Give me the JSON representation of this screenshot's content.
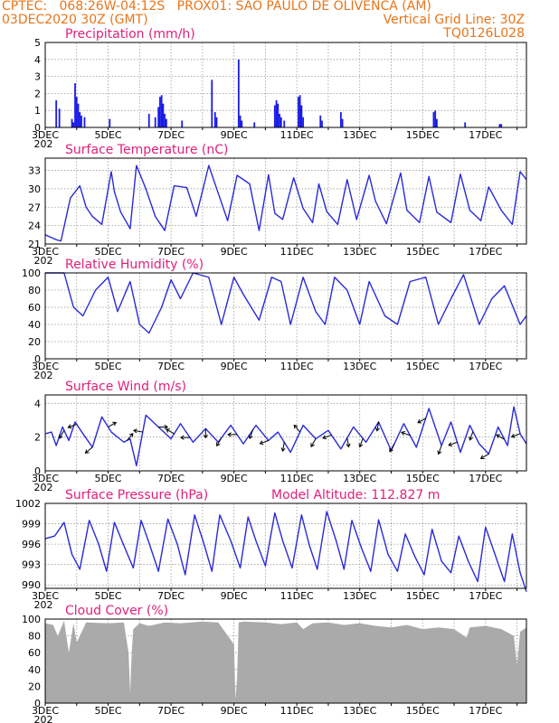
{
  "header": {
    "left_line1": "CPTEC:   068:26W-04:12S   PROX01: SAO PAULO DE OLIVENCA (AM)",
    "left_line2": "03DEC2020 30Z (GMT)",
    "right_line2": "Vertical Grid Line: 30Z",
    "right_line3": "TQ0126L028"
  },
  "colors": {
    "header": "#e8751a",
    "title": "#e0207a",
    "series": "#2a2ad8",
    "precip": "#1a1ae6",
    "cloud": "#aaaaaa",
    "arrow": "#000000"
  },
  "x_axis": {
    "labels": [
      "3DEC",
      "5DEC",
      "7DEC",
      "9DEC",
      "11DEC",
      "13DEC",
      "15DEC",
      "17DEC"
    ],
    "year_stub": "202"
  },
  "chart_data": [
    {
      "type": "bar",
      "title": "Precipitation (mm/h)",
      "ylim": [
        0,
        5
      ],
      "yticks": [
        "0",
        "1",
        "2",
        "3",
        "4",
        "5"
      ],
      "x_range_days": [
        0,
        15.3
      ],
      "spikes": [
        [
          0.35,
          1.6
        ],
        [
          0.45,
          1.1
        ],
        [
          0.85,
          0.5
        ],
        [
          0.9,
          0.3
        ],
        [
          0.95,
          2.6
        ],
        [
          1.0,
          1.8
        ],
        [
          1.05,
          1.4
        ],
        [
          1.1,
          0.9
        ],
        [
          1.15,
          0.7
        ],
        [
          1.25,
          0.6
        ],
        [
          2.05,
          0.5
        ],
        [
          3.3,
          0.8
        ],
        [
          3.5,
          0.6
        ],
        [
          3.6,
          1.2
        ],
        [
          3.65,
          1.8
        ],
        [
          3.7,
          1.9
        ],
        [
          3.75,
          1.4
        ],
        [
          3.8,
          0.8
        ],
        [
          3.85,
          0.5
        ],
        [
          4.35,
          0.4
        ],
        [
          5.3,
          2.8
        ],
        [
          5.4,
          0.9
        ],
        [
          5.45,
          0.6
        ],
        [
          6.15,
          4.0
        ],
        [
          6.2,
          0.7
        ],
        [
          6.25,
          0.4
        ],
        [
          6.65,
          0.3
        ],
        [
          7.3,
          1.3
        ],
        [
          7.35,
          1.6
        ],
        [
          7.4,
          1.4
        ],
        [
          7.45,
          0.8
        ],
        [
          7.5,
          0.6
        ],
        [
          7.6,
          0.4
        ],
        [
          8.05,
          1.8
        ],
        [
          8.1,
          1.9
        ],
        [
          8.15,
          1.3
        ],
        [
          8.2,
          0.6
        ],
        [
          8.75,
          0.7
        ],
        [
          8.8,
          0.4
        ],
        [
          9.4,
          0.9
        ],
        [
          9.45,
          0.5
        ],
        [
          12.35,
          0.9
        ],
        [
          12.4,
          1.0
        ],
        [
          12.45,
          0.5
        ],
        [
          13.35,
          0.3
        ],
        [
          14.45,
          0.2
        ],
        [
          14.5,
          0.2
        ]
      ]
    },
    {
      "type": "line",
      "title": "Surface Temperature (nC)",
      "ylim": [
        21,
        35
      ],
      "yticks": [
        "21",
        "24",
        "27",
        "30",
        "33"
      ],
      "x": [
        0,
        0.35,
        0.5,
        0.8,
        1.1,
        1.3,
        1.5,
        1.8,
        2.1,
        2.2,
        2.4,
        2.7,
        2.9,
        3.2,
        3.5,
        3.8,
        4.1,
        4.5,
        4.8,
        5.2,
        5.5,
        5.8,
        6.1,
        6.5,
        6.8,
        7.1,
        7.3,
        7.55,
        7.9,
        8.2,
        8.5,
        8.7,
        8.95,
        9.3,
        9.6,
        9.9,
        10.3,
        10.5,
        10.85,
        11.3,
        11.5,
        11.9,
        12.2,
        12.45,
        12.9,
        13.2,
        13.5,
        13.85,
        14.1,
        14.5,
        14.85,
        15.1,
        15.3
      ],
      "y": [
        22.5,
        21.7,
        21.5,
        28.5,
        30.5,
        27,
        25.5,
        24.2,
        32.8,
        29.5,
        26.2,
        23.5,
        33.8,
        30,
        25.5,
        23.2,
        30.5,
        30.2,
        25.5,
        33.8,
        29.3,
        24.8,
        32.2,
        30.8,
        23.2,
        32.3,
        26,
        25,
        31.8,
        26.8,
        24.5,
        30.8,
        26.3,
        24.2,
        31.5,
        25,
        32.2,
        28,
        24.3,
        32.6,
        26.5,
        24.5,
        32,
        26.2,
        24.5,
        32.4,
        26.5,
        24.8,
        30.3,
        26.5,
        24.2,
        32.8,
        31.5
      ]
    },
    {
      "type": "line",
      "title": "Relative Humidity (%)",
      "ylim": [
        0,
        100
      ],
      "yticks": [
        "0",
        "20",
        "40",
        "60",
        "80",
        "100"
      ],
      "x": [
        0,
        0.6,
        0.9,
        1.2,
        1.6,
        2.0,
        2.3,
        2.7,
        3.0,
        3.3,
        3.7,
        4.0,
        4.3,
        4.7,
        5.2,
        5.6,
        6.0,
        6.3,
        6.8,
        7.2,
        7.5,
        7.8,
        8.2,
        8.6,
        8.9,
        9.2,
        9.6,
        10.0,
        10.3,
        10.8,
        11.2,
        11.6,
        12.1,
        12.5,
        12.9,
        13.3,
        13.8,
        14.2,
        14.6,
        15.1,
        15.3
      ],
      "y": [
        100,
        100,
        60,
        50,
        80,
        95,
        55,
        90,
        40,
        30,
        60,
        92,
        70,
        100,
        95,
        40,
        95,
        75,
        45,
        95,
        90,
        40,
        95,
        55,
        40,
        95,
        80,
        40,
        90,
        50,
        40,
        90,
        95,
        40,
        70,
        98,
        40,
        70,
        85,
        40,
        50
      ]
    },
    {
      "type": "line",
      "title": "Surface Wind (m/s)",
      "ylim": [
        0,
        4.5
      ],
      "yticks": [
        "0",
        "2",
        "4"
      ],
      "x": [
        0,
        0.2,
        0.35,
        0.55,
        0.75,
        0.95,
        1.2,
        1.5,
        1.8,
        2.1,
        2.5,
        2.7,
        2.9,
        3.2,
        3.6,
        4.0,
        4.3,
        4.7,
        5.1,
        5.5,
        5.9,
        6.3,
        6.7,
        7.1,
        7.4,
        7.8,
        8.2,
        8.6,
        9.0,
        9.4,
        9.8,
        10.2,
        10.6,
        11.0,
        11.4,
        11.8,
        12.2,
        12.6,
        12.9,
        13.2,
        13.5,
        13.8,
        14.1,
        14.4,
        14.7,
        14.9,
        15.1,
        15.3
      ],
      "y": [
        2.2,
        2.3,
        1.5,
        2.6,
        1.8,
        2.9,
        2.2,
        1.4,
        3.2,
        2.3,
        1.7,
        1.9,
        0.3,
        3.3,
        2.6,
        1.9,
        2.8,
        1.7,
        2.5,
        1.7,
        2.7,
        1.6,
        2.7,
        1.8,
        2.3,
        1.1,
        2.7,
        1.9,
        2.4,
        1.3,
        2.6,
        1.7,
        2.9,
        1.2,
        2.8,
        1.4,
        3.7,
        1.5,
        2.9,
        1.1,
        2.7,
        1.6,
        1.0,
        2.6,
        1.5,
        3.8,
        2.2,
        1.6
      ],
      "arrow_times": [
        0.6,
        1.0,
        1.5,
        2.0,
        2.6,
        3.1,
        3.6,
        4.1,
        4.6,
        5.1,
        5.6,
        6.1,
        6.6,
        7.1,
        7.6,
        8.1,
        8.6,
        9.1,
        9.6,
        10.1,
        10.6,
        11.1,
        11.6,
        12.1,
        12.6,
        13.1,
        13.6,
        14.1,
        14.6,
        15.1
      ],
      "arrow_dirs": [
        210,
        250,
        230,
        60,
        40,
        280,
        90,
        300,
        270,
        180,
        210,
        270,
        200,
        250,
        190,
        320,
        210,
        250,
        170,
        200,
        190,
        210,
        290,
        240,
        200,
        250,
        200,
        240,
        300,
        250
      ]
    },
    {
      "type": "line",
      "title": "Surface Pressure (hPa)",
      "annotation": "Model Altitude: 112.827 m",
      "ylim": [
        989.5,
        1002
      ],
      "yticks": [
        "990",
        "993",
        "996",
        "999",
        "1002"
      ],
      "x": [
        0,
        0.3,
        0.6,
        0.85,
        1.1,
        1.4,
        1.7,
        1.95,
        2.2,
        2.5,
        2.8,
        3.05,
        3.3,
        3.6,
        3.9,
        4.2,
        4.45,
        4.75,
        5.05,
        5.3,
        5.55,
        5.9,
        6.2,
        6.45,
        6.7,
        7.0,
        7.3,
        7.55,
        7.85,
        8.15,
        8.4,
        8.65,
        8.95,
        9.25,
        9.5,
        9.75,
        10.05,
        10.35,
        10.6,
        10.9,
        11.2,
        11.45,
        11.75,
        12.05,
        12.3,
        12.6,
        12.9,
        13.15,
        13.45,
        13.75,
        14.0,
        14.3,
        14.6,
        14.85,
        15.1,
        15.3
      ],
      "y": [
        996.8,
        997.2,
        999.2,
        994.5,
        992.3,
        999.5,
        996.0,
        992.0,
        999.2,
        995.8,
        992.5,
        999.5,
        996.2,
        992.0,
        999.7,
        996.0,
        991.5,
        1000.3,
        996.0,
        992.0,
        1000.3,
        996.5,
        992.5,
        1000.0,
        996.5,
        992.8,
        1000.6,
        996.5,
        992.5,
        1000.3,
        995.8,
        992.3,
        1000.8,
        996.5,
        992.3,
        999.5,
        995.5,
        992.0,
        999.6,
        994.5,
        992.0,
        997.5,
        994.2,
        991.5,
        998.2,
        993.5,
        991.8,
        997.2,
        993.5,
        990.5,
        998.5,
        994.5,
        990.5,
        997.5,
        991.8,
        989.0
      ]
    },
    {
      "type": "area",
      "title": "Cloud Cover (%)",
      "ylim": [
        0,
        100
      ],
      "yticks": [
        "0",
        "20",
        "40",
        "60",
        "80",
        "100"
      ],
      "x": [
        0,
        0.25,
        0.4,
        0.6,
        0.75,
        0.9,
        1.0,
        1.3,
        2.0,
        2.5,
        2.65,
        2.7,
        2.75,
        2.8,
        3.0,
        3.3,
        3.8,
        4.3,
        5.0,
        5.5,
        6.0,
        6.05,
        6.1,
        6.15,
        6.3,
        7.0,
        7.5,
        8.0,
        8.2,
        8.5,
        9.0,
        9.5,
        10.0,
        10.5,
        11.0,
        11.5,
        12.0,
        12.5,
        13.0,
        13.4,
        13.5,
        14.0,
        14.5,
        14.9,
        15.0,
        15.1,
        15.3
      ],
      "y": [
        95,
        93,
        80,
        98,
        60,
        95,
        72,
        96,
        95,
        96,
        60,
        12,
        60,
        88,
        95,
        92,
        96,
        95,
        97,
        96,
        70,
        5,
        30,
        96,
        97,
        96,
        94,
        96,
        88,
        95,
        96,
        93,
        95,
        92,
        90,
        93,
        88,
        90,
        88,
        78,
        90,
        92,
        88,
        80,
        45,
        85,
        90
      ]
    }
  ]
}
